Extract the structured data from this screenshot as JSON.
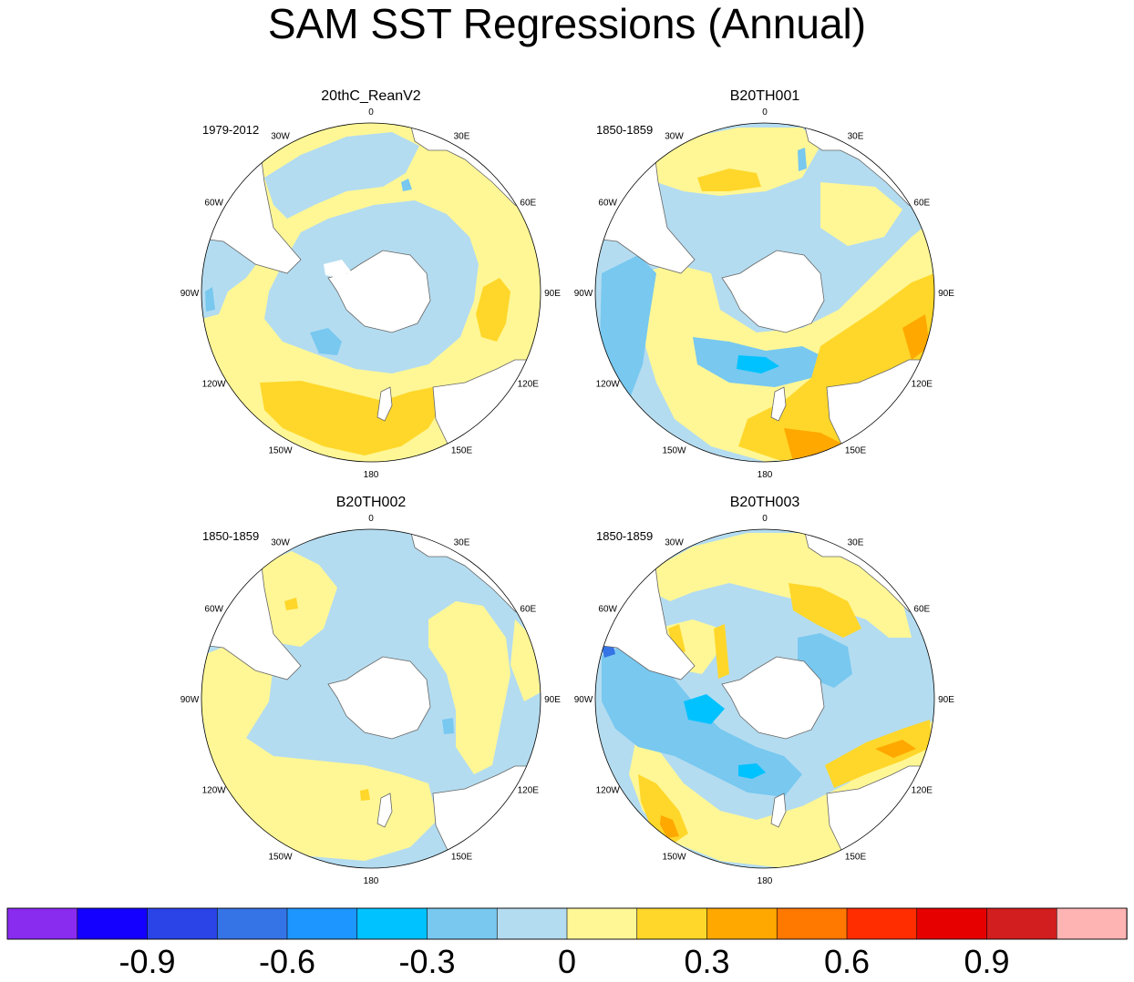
{
  "title": "SAM SST Regressions (Annual)",
  "colors": {
    "background": "#ffffff",
    "land": "#ffffff",
    "outline": "#000000",
    "blue_ocean": "#b4dcf0",
    "yellow_ocean": "#fff796"
  },
  "chart_data": [
    {
      "type": "heatmap",
      "projection": "south-polar-stereographic",
      "title": "20thC_ReanV2",
      "subtitle": "1979-2012",
      "longitude_labels": [
        "0",
        "30E",
        "60E",
        "90E",
        "120E",
        "150E",
        "180",
        "150W",
        "120W",
        "90W",
        "60W",
        "30W"
      ],
      "field_description": "gridded SST regression on SAM index (values not printed)"
    },
    {
      "type": "heatmap",
      "projection": "south-polar-stereographic",
      "title": "B20TH001",
      "subtitle": "1850-1859",
      "longitude_labels": [
        "0",
        "30E",
        "60E",
        "90E",
        "120E",
        "150E",
        "180",
        "150W",
        "120W",
        "90W",
        "60W",
        "30W"
      ],
      "field_description": "gridded SST regression on SAM index (values not printed)"
    },
    {
      "type": "heatmap",
      "projection": "south-polar-stereographic",
      "title": "B20TH002",
      "subtitle": "1850-1859",
      "longitude_labels": [
        "0",
        "30E",
        "60E",
        "90E",
        "120E",
        "150E",
        "180",
        "150W",
        "120W",
        "90W",
        "60W",
        "30W"
      ],
      "field_description": "gridded SST regression on SAM index (values not printed)"
    },
    {
      "type": "heatmap",
      "projection": "south-polar-stereographic",
      "title": "B20TH003",
      "subtitle": "1850-1859",
      "longitude_labels": [
        "0",
        "30E",
        "60E",
        "90E",
        "120E",
        "150E",
        "180",
        "150W",
        "120W",
        "90W",
        "60W",
        "30W"
      ],
      "field_description": "gridded SST regression on SAM index (values not printed)"
    }
  ],
  "colorbar": {
    "colors": [
      "#8a2bf0",
      "#1400ff",
      "#2a44e8",
      "#3574e6",
      "#1e96ff",
      "#00c2ff",
      "#78c8f0",
      "#b4dcf0",
      "#fff796",
      "#ffd72a",
      "#ffa800",
      "#ff7800",
      "#ff2d00",
      "#e60000",
      "#d21e1e",
      "#ffb4b4"
    ],
    "tick_values": [
      "-0.9",
      "-0.6",
      "-0.3",
      "0",
      "0.3",
      "0.6",
      "0.9"
    ],
    "tick_boundary_index": [
      2,
      4,
      6,
      8,
      10,
      12,
      14
    ]
  }
}
